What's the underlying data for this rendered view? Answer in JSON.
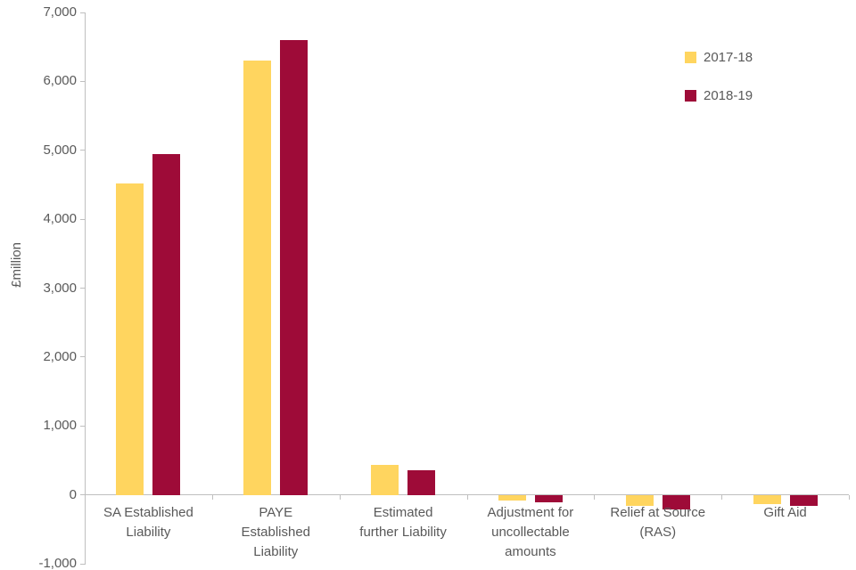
{
  "chart_data": {
    "type": "bar",
    "title": "",
    "xlabel": "",
    "ylabel": "£million",
    "ylim": [
      -1000,
      7000
    ],
    "grid": false,
    "legend_position": "top-right",
    "yticks": [
      7000,
      6000,
      5000,
      4000,
      3000,
      2000,
      1000,
      0,
      -1000
    ],
    "ytick_labels": [
      "7,000",
      "6,000",
      "5,000",
      "4,000",
      "3,000",
      "2,000",
      "1,000",
      "0",
      "-1,000"
    ],
    "categories": [
      "SA Established\nLiability",
      "PAYE\nEstablished\nLiability",
      "Estimated\nfurther Liability",
      "Adjustment for\nuncollectable\namounts",
      "Relief at Source\n(RAS)",
      "Gift Aid"
    ],
    "series": [
      {
        "name": "2017-18",
        "color": "#FFD55F",
        "values": [
          4520,
          6300,
          430,
          -80,
          -150,
          -130
        ]
      },
      {
        "name": "2018-19",
        "color": "#9E0B38",
        "values": [
          4950,
          6600,
          360,
          -100,
          -200,
          -150
        ]
      }
    ]
  },
  "colors": {
    "axis": "#bfbfbf",
    "text": "#595959",
    "background": "#ffffff"
  }
}
